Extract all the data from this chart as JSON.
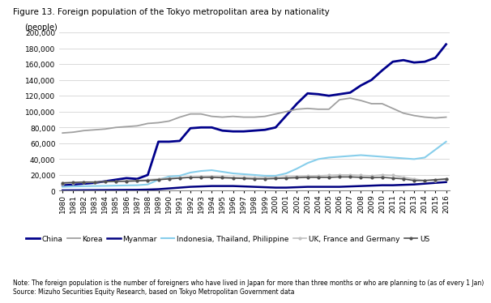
{
  "title": "Figure 13. Foreign population of the Tokyo metropolitan area by nationality",
  "ylabel": "(people)",
  "note": "Note: The foreign population is the number of foreigners who have lived in Japan for more than three months or who are planning to (as of every 1 Jan)\nSource: Mizuho Securities Equity Research, based on Tokyo Metropolitan Government data",
  "years": [
    1980,
    1981,
    1982,
    1983,
    1984,
    1985,
    1986,
    1987,
    1988,
    1989,
    1990,
    1991,
    1992,
    1993,
    1994,
    1995,
    1996,
    1997,
    1998,
    1999,
    2000,
    2001,
    2002,
    2003,
    2004,
    2005,
    2006,
    2007,
    2008,
    2009,
    2010,
    2011,
    2012,
    2013,
    2014,
    2015,
    2016
  ],
  "series": {
    "China": {
      "color": "#00008B",
      "linewidth": 2.0,
      "marker": null,
      "linestyle": "-",
      "values": [
        7000,
        8000,
        9000,
        10000,
        12000,
        14000,
        16000,
        15000,
        20000,
        62000,
        62000,
        63000,
        79000,
        80000,
        80000,
        76000,
        75000,
        75000,
        76000,
        77000,
        80000,
        95000,
        110000,
        123000,
        122000,
        120000,
        122000,
        124000,
        133000,
        140000,
        152000,
        163000,
        165000,
        162000,
        163000,
        168000,
        185000
      ]
    },
    "Korea": {
      "color": "#A0A0A0",
      "linewidth": 1.3,
      "marker": null,
      "linestyle": "-",
      "values": [
        73000,
        74000,
        76000,
        77000,
        78000,
        80000,
        81000,
        82000,
        85000,
        86000,
        88000,
        93000,
        97000,
        97000,
        94000,
        93000,
        94000,
        93000,
        93000,
        94000,
        97000,
        100000,
        103000,
        104000,
        103000,
        103000,
        115000,
        117000,
        114000,
        110000,
        110000,
        104000,
        98000,
        95000,
        93000,
        92000,
        93000
      ]
    },
    "Myanmar": {
      "color": "#000080",
      "linewidth": 1.8,
      "marker": null,
      "linestyle": "-",
      "values": [
        500,
        600,
        700,
        800,
        900,
        1000,
        1100,
        1200,
        1500,
        2000,
        3000,
        4000,
        5000,
        5500,
        6000,
        6000,
        6000,
        5500,
        5000,
        4500,
        4000,
        4000,
        4500,
        5000,
        5000,
        5000,
        5000,
        5500,
        6000,
        6500,
        7000,
        7000,
        7500,
        8000,
        9000,
        10000,
        11000
      ]
    },
    "Indonesia, Thailand, Philippine": {
      "color": "#87CEEB",
      "linewidth": 1.5,
      "marker": null,
      "linestyle": "-",
      "values": [
        5000,
        5500,
        5800,
        6000,
        6200,
        6500,
        6800,
        7000,
        8000,
        14000,
        18000,
        19000,
        23000,
        25000,
        26000,
        24000,
        22000,
        21000,
        20000,
        19000,
        19000,
        22000,
        28000,
        35000,
        40000,
        42000,
        43000,
        44000,
        45000,
        44000,
        43000,
        42000,
        41000,
        40000,
        42000,
        52000,
        62000
      ]
    },
    "UK, France and Germany": {
      "color": "#C0C0C0",
      "linewidth": 1.2,
      "marker": "o",
      "markersize": 2.0,
      "linestyle": "-",
      "values": [
        9000,
        10000,
        10500,
        11000,
        11500,
        12000,
        12500,
        13000,
        14000,
        15000,
        16000,
        16500,
        17000,
        17500,
        18000,
        17500,
        17000,
        17000,
        17000,
        17000,
        17000,
        17500,
        18000,
        18500,
        19000,
        19500,
        20000,
        20000,
        19500,
        19000,
        20000,
        19500,
        17000,
        15000,
        13000,
        13000,
        14500
      ]
    },
    "US": {
      "color": "#505050",
      "linewidth": 1.2,
      "marker": "o",
      "markersize": 2.0,
      "linestyle": "-",
      "values": [
        10000,
        10500,
        11000,
        11000,
        11500,
        12000,
        12000,
        12500,
        13000,
        14000,
        15000,
        16000,
        17000,
        17000,
        17000,
        16500,
        16000,
        15500,
        15000,
        15000,
        15500,
        16000,
        16500,
        17000,
        17000,
        17000,
        17500,
        17500,
        17000,
        16500,
        17000,
        16000,
        15000,
        13000,
        13000,
        14000,
        15000
      ]
    }
  },
  "ylim": [
    0,
    200000
  ],
  "yticks": [
    0,
    20000,
    40000,
    60000,
    80000,
    100000,
    120000,
    140000,
    160000,
    180000,
    200000
  ],
  "background_color": "#ffffff",
  "grid_color": "#d3d3d3",
  "title_fontsize": 7.5,
  "ylabel_fontsize": 7,
  "tick_fontsize": 6.5,
  "note_fontsize": 5.5,
  "legend_fontsize": 6.5
}
